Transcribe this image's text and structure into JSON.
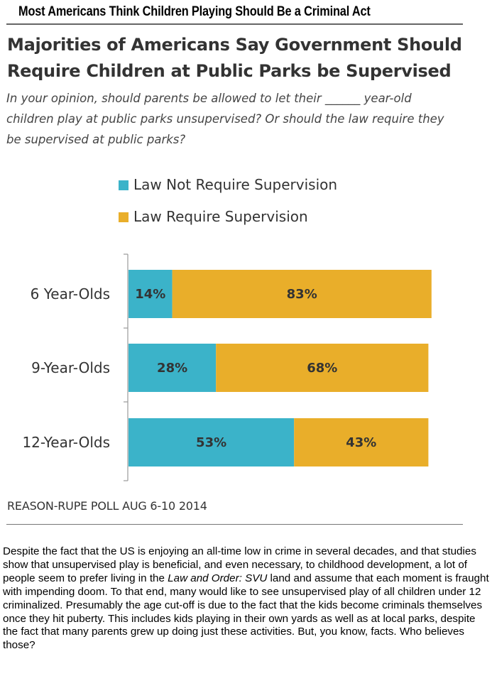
{
  "headline": "Most Americans Think Children Playing Should Be a Criminal Act",
  "colors": {
    "not_require": "#3bb3c9",
    "require": "#e9ae2a"
  },
  "chart_data": {
    "type": "bar",
    "orientation": "horizontal",
    "stacked": true,
    "title": "Majorities of Americans Say Government Should Require Children at Public Parks be Supervised",
    "subtitle": "In your opinion, should parents be allowed to let their ______ year-old children play at public parks unsupervised? Or should the law require they be supervised at public parks?",
    "categories": [
      "6 Year-Olds",
      "9-Year-Olds",
      "12-Year-Olds"
    ],
    "series": [
      {
        "name": "Law Not Require Supervision",
        "values": [
          14,
          28,
          53
        ],
        "labels": [
          "14%",
          "28%",
          "53%"
        ],
        "color": "#3bb3c9"
      },
      {
        "name": "Law Require Supervision",
        "values": [
          83,
          68,
          43
        ],
        "labels": [
          "83%",
          "68%",
          "43%"
        ],
        "color": "#e9ae2a"
      }
    ],
    "unit": "%",
    "legend_position": "top",
    "grid": false,
    "source": "REASON-RUPE POLL AUG 6-10 2014"
  },
  "article": {
    "p1": "Despite the fact that the US is enjoying an all-time low in crime in several decades, and that studies show that unsupervised play is beneficial, and even necessary, to childhood development, a lot of people seem to prefer living in the ",
    "p_italic": "Law and Order: SVU",
    "p2": " land and assume that each moment is fraught with impending doom. To that end, many would like to see unsupervised play of all children under 12 criminalized. Presumably the age cut-off is due to the fact that the kids become criminals themselves once they hit puberty. This includes kids playing in their own yards as well as at local parks, despite the fact that many parents grew up doing just these activities. But, you know, facts. Who believes those?"
  }
}
